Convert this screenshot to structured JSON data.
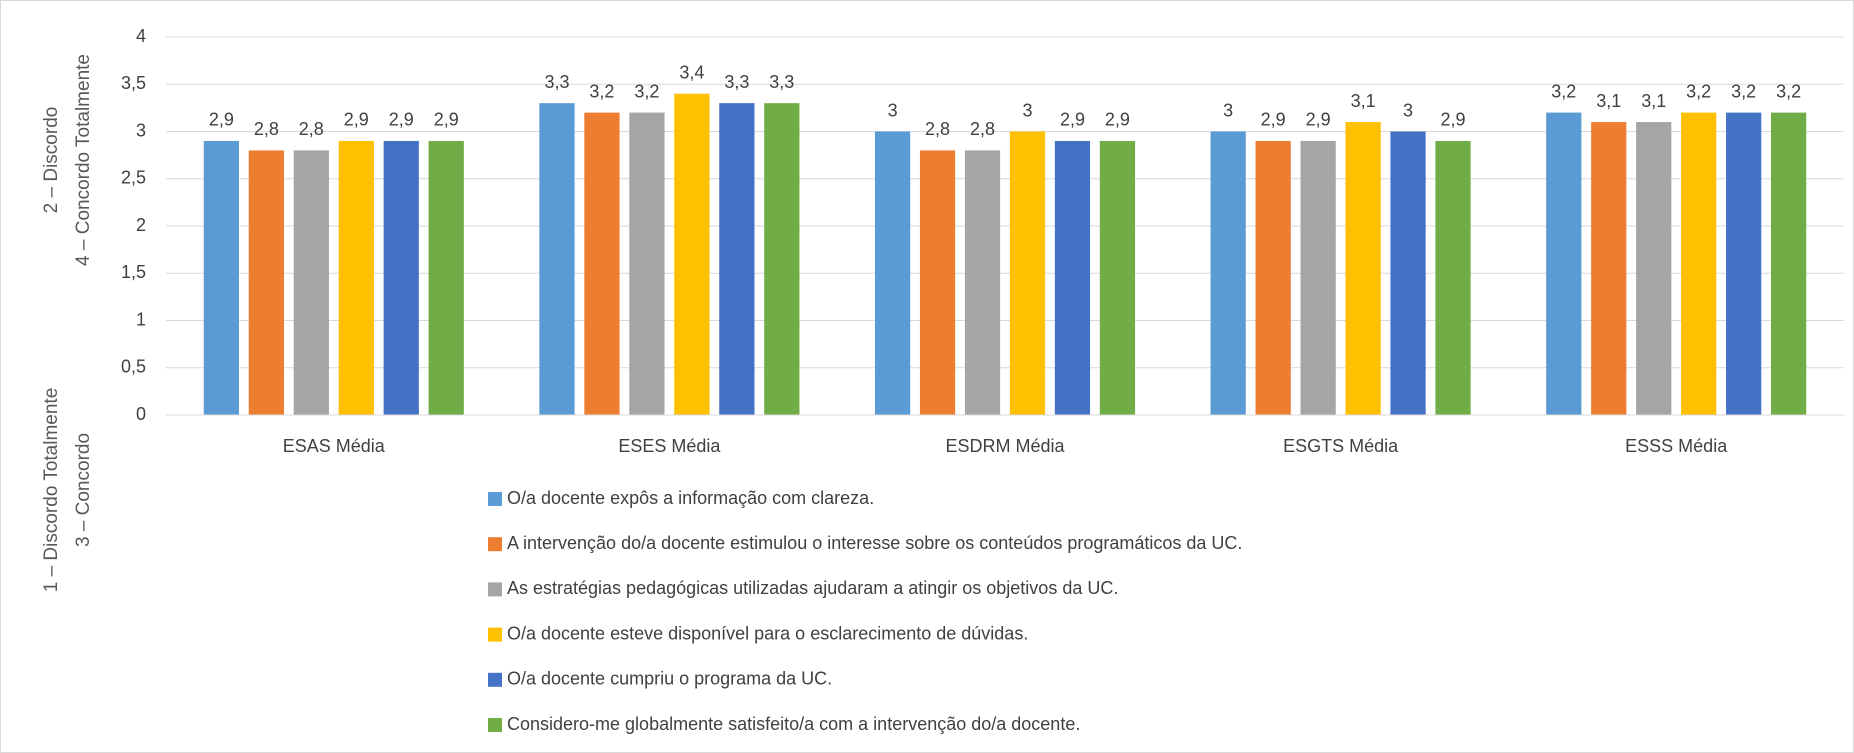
{
  "chart_data": {
    "type": "bar",
    "ylabel": [
      "1 – Discordo Totalmente",
      "2 – Discordo",
      "3 – Concordo",
      "4 – Concordo Totalmente"
    ],
    "categories": [
      "ESAS Média",
      "ESES Média",
      "ESDRM Média",
      "ESGTS Média",
      "ESSS Média"
    ],
    "series": [
      {
        "name": "O/a docente expôs a informação com clareza.",
        "color": "#5b9bd5",
        "values": [
          2.9,
          3.3,
          3,
          3,
          3.2
        ],
        "value_labels": [
          "2,9",
          "3,3",
          "3",
          "3",
          "3,2"
        ]
      },
      {
        "name": "A intervenção do/a docente estimulou o interesse sobre os conteúdos programáticos da UC.",
        "color": "#ed7d31",
        "values": [
          2.8,
          3.2,
          2.8,
          2.9,
          3.1
        ],
        "value_labels": [
          "2,8",
          "3,2",
          "2,8",
          "2,9",
          "3,1"
        ]
      },
      {
        "name": "As estratégias pedagógicas utilizadas ajudaram a atingir os objetivos da UC.",
        "color": "#a5a5a5",
        "values": [
          2.8,
          3.2,
          2.8,
          2.9,
          3.1
        ],
        "value_labels": [
          "2,8",
          "3,2",
          "2,8",
          "2,9",
          "3,1"
        ]
      },
      {
        "name": "O/a docente esteve disponível para o esclarecimento de dúvidas.",
        "color": "#ffc000",
        "values": [
          2.9,
          3.4,
          3,
          3.1,
          3.2
        ],
        "value_labels": [
          "2,9",
          "3,4",
          "3",
          "3,1",
          "3,2"
        ]
      },
      {
        "name": "O/a docente cumpriu o programa da UC.",
        "color": "#4472c4",
        "values": [
          2.9,
          3.3,
          2.9,
          3,
          3.2
        ],
        "value_labels": [
          "2,9",
          "3,3",
          "2,9",
          "3",
          "3,2"
        ]
      },
      {
        "name": "Considero-me globalmente satisfeito/a com a intervenção do/a docente.",
        "color": "#70ad47",
        "values": [
          2.9,
          3.3,
          2.9,
          2.9,
          3.2
        ],
        "value_labels": [
          "2,9",
          "3,3",
          "2,9",
          "2,9",
          "3,2"
        ]
      }
    ],
    "ylim": [
      0,
      4
    ],
    "yticks": [
      0,
      {
        "value": 0.5,
        "label": "0,5"
      },
      1,
      {
        "value": 1.5,
        "label": "1,5"
      },
      2,
      {
        "value": 2.5,
        "label": "2,5"
      },
      3,
      {
        "value": 3.5,
        "label": "3,5"
      },
      4
    ],
    "grid": true,
    "legend": "bottom"
  }
}
